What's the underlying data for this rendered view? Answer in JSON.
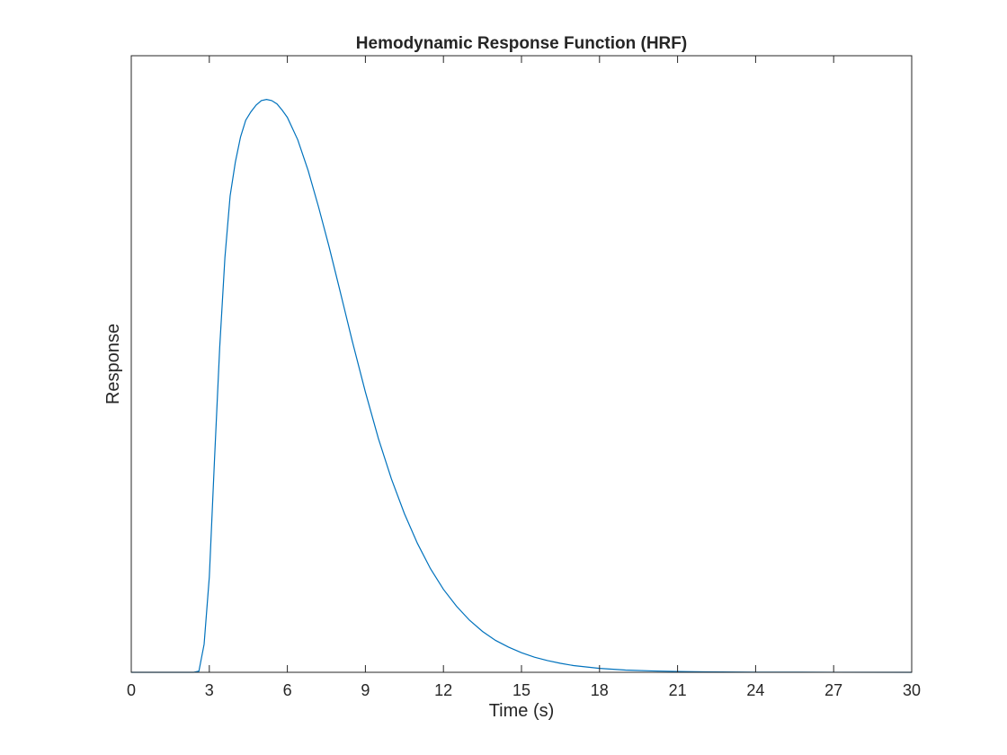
{
  "chart_data": {
    "type": "line",
    "title": "Hemodynamic Response Function (HRF)",
    "xlabel": "Time (s)",
    "ylabel": "Response",
    "xlim": [
      0,
      30
    ],
    "ylim": [
      0,
      1.1
    ],
    "xticks": [
      0,
      3,
      6,
      9,
      12,
      15,
      18,
      21,
      24,
      27,
      30
    ],
    "yticks": [],
    "grid": false,
    "legend": "none",
    "box": true,
    "line_color": "#0072bd",
    "series": [
      {
        "x": [
          0,
          2.4,
          2.6,
          2.8,
          3.0,
          3.2,
          3.4,
          3.6,
          3.8,
          4.0,
          4.2,
          4.4,
          4.6,
          4.8,
          5.0,
          5.2,
          5.4,
          5.6,
          5.8,
          6.0,
          6.4,
          6.8,
          7.2,
          7.6,
          8.0,
          8.5,
          9.0,
          9.5,
          10.0,
          10.5,
          11.0,
          11.5,
          12.0,
          12.5,
          13.0,
          13.5,
          14.0,
          14.5,
          15.0,
          15.5,
          16.0,
          16.5,
          17.0,
          18.0,
          19.0,
          20.0,
          21.0,
          22.0,
          24.0,
          27.0,
          30.0
        ],
        "y": [
          0,
          0,
          0.002,
          0.05,
          0.17,
          0.38,
          0.58,
          0.74,
          0.85,
          0.91,
          0.955,
          0.985,
          1.0,
          1.012,
          1.02,
          1.022,
          1.02,
          1.014,
          1.003,
          0.99,
          0.95,
          0.895,
          0.83,
          0.76,
          0.685,
          0.59,
          0.5,
          0.417,
          0.345,
          0.283,
          0.23,
          0.185,
          0.148,
          0.118,
          0.093,
          0.073,
          0.057,
          0.045,
          0.035,
          0.027,
          0.021,
          0.016,
          0.012,
          0.007,
          0.004,
          0.0025,
          0.0015,
          0.0009,
          0.0003,
          0.0001,
          0.0
        ]
      }
    ]
  }
}
